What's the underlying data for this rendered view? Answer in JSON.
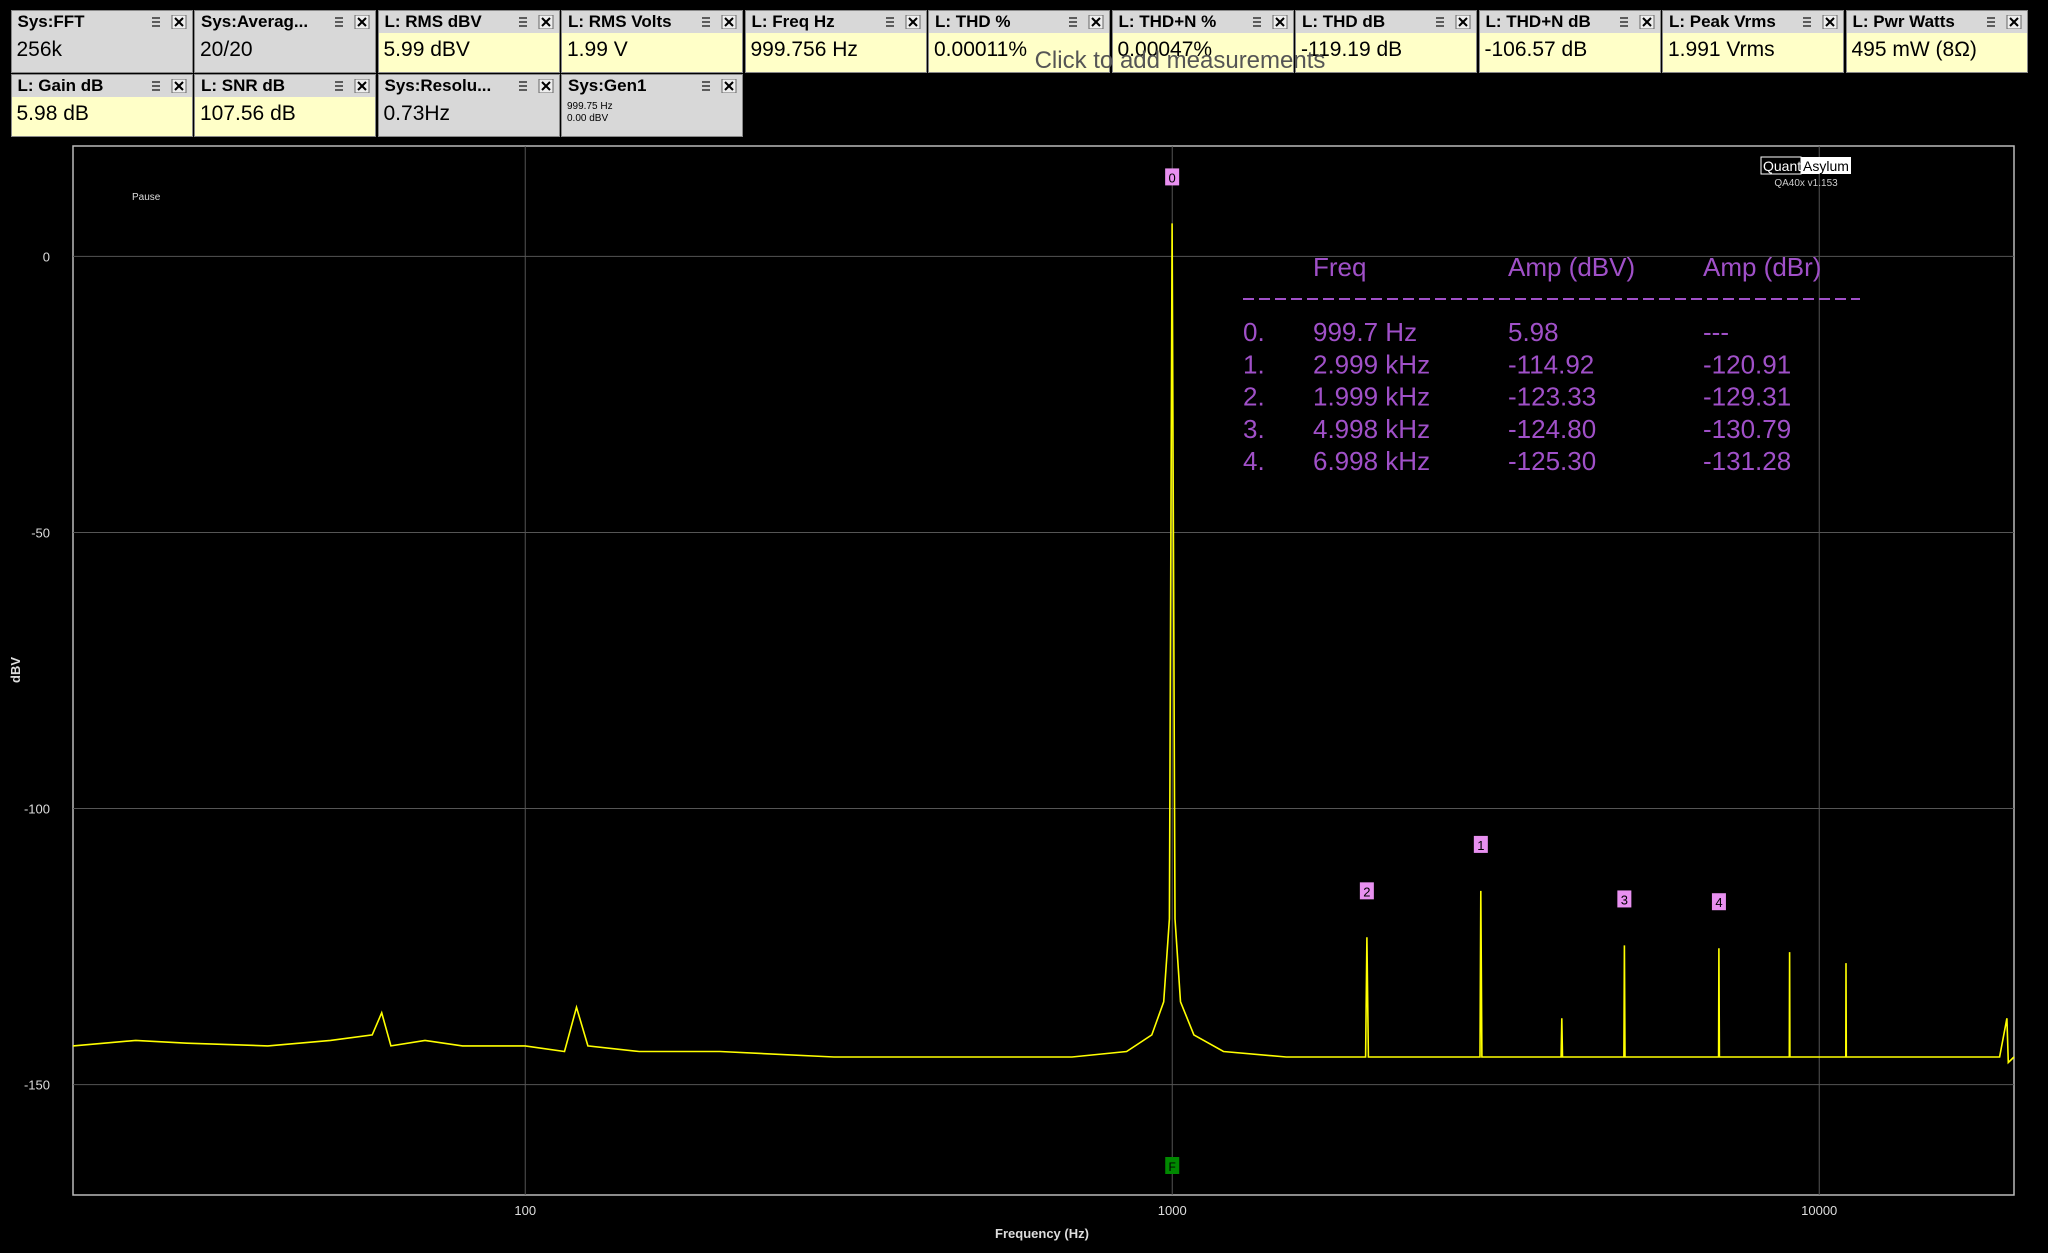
{
  "measurements": [
    {
      "name": "Sys:FFT",
      "value": "256k",
      "color": "#d8d8d8"
    },
    {
      "name": "Sys:Averag...",
      "value": "20/20",
      "color": "#d8d8d8"
    },
    {
      "name": "L: RMS dBV",
      "value": "5.99 dBV",
      "color": "#ffffc8"
    },
    {
      "name": "L: RMS Volts",
      "value": "1.99 V",
      "color": "#ffffc8"
    },
    {
      "name": "L: Freq Hz",
      "value": "999.756 Hz",
      "color": "#ffffc8"
    },
    {
      "name": "L: THD %",
      "value": "0.00011%",
      "color": "#ffffc8"
    },
    {
      "name": "L: THD+N %",
      "value": "0.00047%",
      "color": "#ffffc8"
    },
    {
      "name": "L: THD dB",
      "value": "-119.19 dB",
      "color": "#ffffc8"
    },
    {
      "name": "L: THD+N dB",
      "value": "-106.57 dB",
      "color": "#ffffc8"
    },
    {
      "name": "L: Peak Vrms",
      "value": "1.991 Vrms",
      "color": "#ffffc8"
    },
    {
      "name": "L: Pwr Watts",
      "value": "495 mW (8Ω)",
      "color": "#ffffc8"
    },
    {
      "name": "L: Gain dB",
      "value": "5.98 dB",
      "color": "#ffffc8"
    },
    {
      "name": "L: SNR dB",
      "value": "107.56 dB",
      "color": "#ffffc8"
    },
    {
      "name": "Sys:Resolu...",
      "value": "0.73Hz",
      "color": "#d8d8d8"
    },
    {
      "name": "Sys:Gen1",
      "lines": [
        "999.75 Hz",
        "0.00 dBV"
      ],
      "color": "#d8d8d8"
    }
  ],
  "hint": "Click to add measurements",
  "chart_data": {
    "type": "line",
    "x_label": "Frequency (Hz)",
    "y_label": "dBV",
    "status": "Pause",
    "logo": [
      "Quant",
      "Asylum"
    ],
    "version": "QA40x v1.153",
    "xlog": true,
    "xlim": [
      20,
      20000
    ],
    "xticks": [
      100,
      1000,
      10000
    ],
    "ylim": [
      -170,
      20
    ],
    "yticks": [
      -150,
      -100,
      -50,
      0
    ],
    "grid": true,
    "trace": {
      "color": "#ffff00",
      "x": [
        20,
        25,
        30,
        40,
        50,
        58,
        60,
        62,
        70,
        80,
        100,
        115,
        120,
        125,
        150,
        200,
        300,
        500,
        700,
        850,
        930,
        970,
        990,
        999.7,
        1010,
        1030,
        1080,
        1200,
        1500,
        1990,
        1999,
        2010,
        2990,
        2999,
        3010,
        3990,
        4000,
        4010,
        4990,
        4998,
        5010,
        6990,
        6998,
        7010,
        8990,
        9000,
        9010,
        10990,
        11000,
        11010,
        15000,
        19000,
        19500,
        19600,
        20000
      ],
      "values": [
        -143,
        -142,
        -142.5,
        -143,
        -142,
        -141,
        -137,
        -143,
        -142,
        -143,
        -143,
        -144,
        -136,
        -143,
        -144,
        -144,
        -145,
        -145,
        -145,
        -144,
        -141,
        -135,
        -120,
        5.98,
        -120,
        -135,
        -141,
        -144,
        -145,
        -145,
        -123.33,
        -145,
        -145,
        -114.92,
        -145,
        -145,
        -138,
        -145,
        -145,
        -124.8,
        -145,
        -145,
        -125.3,
        -145,
        -145,
        -126,
        -145,
        -145,
        -128,
        -145,
        -145,
        -145,
        -138,
        -146,
        -145
      ]
    },
    "markers": {
      "color": "#e890f0",
      "labels": [
        "0",
        "1",
        "2",
        "3",
        "4"
      ],
      "x": [
        999.7,
        2999,
        1999,
        4998,
        6998
      ],
      "values": [
        5.98,
        -114.92,
        -123.33,
        -124.8,
        -125.3
      ]
    },
    "f_marker": {
      "label": "F",
      "x": 1000,
      "color": "#008800"
    },
    "table": {
      "color": "#a050c8",
      "header": [
        "Freq",
        "Amp (dBV)",
        "Amp (dBr)"
      ],
      "rows": [
        [
          "0.",
          "999.7 Hz",
          "5.98",
          "---"
        ],
        [
          "1.",
          "2.999 kHz",
          "-114.92",
          "-120.91"
        ],
        [
          "2.",
          "1.999 kHz",
          "-123.33",
          "-129.31"
        ],
        [
          "3.",
          "4.998 kHz",
          "-124.80",
          "-130.79"
        ],
        [
          "4.",
          "6.998 kHz",
          "-125.30",
          "-131.28"
        ]
      ]
    }
  }
}
